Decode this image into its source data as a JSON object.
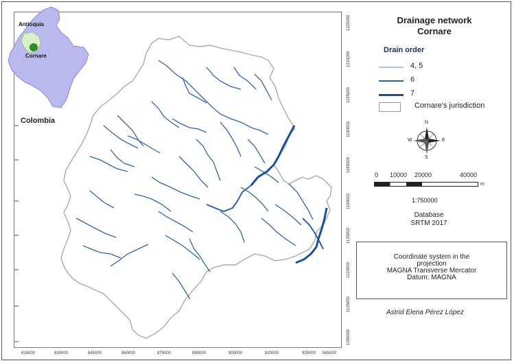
{
  "title": {
    "line1": "Drainage network",
    "line2": "Cornare"
  },
  "legend": {
    "title": "Drain order",
    "items": [
      {
        "label": "4, 5",
        "color": "#5a86b8",
        "width": 1
      },
      {
        "label": "6",
        "color": "#2a62a8",
        "width": 2
      },
      {
        "label": "7",
        "color": "#1b4f95",
        "width": 3
      }
    ],
    "jurisdiction_label": "Cornare's jurisdiction"
  },
  "inset": {
    "region_label": "Antioquia",
    "area_label": "Cornare",
    "country_label": "Colombia",
    "country_color": "#b9b9ee",
    "region_color": "#d9efc9",
    "area_color": "#2e8b2e"
  },
  "north_arrow": {
    "n": "N",
    "s": "S",
    "e": "E",
    "w": "W"
  },
  "scale": {
    "labels": [
      "0",
      "10000",
      "20000",
      "40000"
    ],
    "unit": "m",
    "ratio": "1:750000"
  },
  "database": {
    "line1": "Database",
    "line2": "SRTM 2017"
  },
  "coordinate_system": {
    "line1": "Coordinate system in the",
    "line2": "projection",
    "line3": "MAGNA Transverse Mercator",
    "line4": "Datum: MAGNA"
  },
  "author": "Astrid Elena Pérez López",
  "x_ticks": [
    "815000",
    "830000",
    "845000",
    "860000",
    "875000",
    "890000",
    "905000",
    "920000",
    "935000",
    "945000"
  ],
  "y_ticks": [
    "1225000",
    "1210000",
    "1195000",
    "1180000",
    "1165000",
    "1150000",
    "1135000",
    "1120000",
    "1105000",
    "1090000"
  ],
  "map_colors": {
    "boundary": "#a9a9a9",
    "river": "#2f64a3",
    "river_main": "#1a4d94"
  }
}
